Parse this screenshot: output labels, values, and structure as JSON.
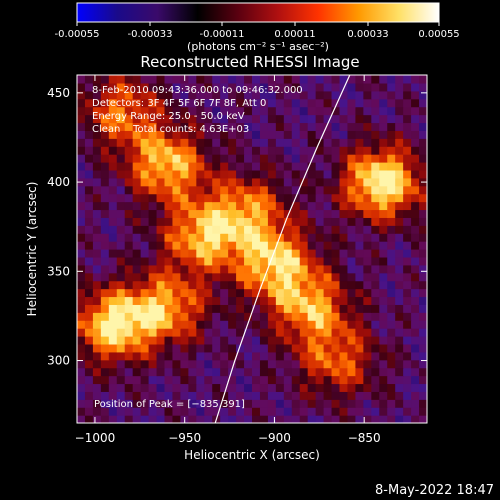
{
  "colorbar": {
    "ticks": [
      "-0.00055",
      "-0.00033",
      "-0.00011",
      "0.00011",
      "0.00033",
      "0.00055"
    ],
    "unit_label": "(photons cm⁻² s⁻¹ asec⁻²)",
    "colors": [
      "#0000ff",
      "#1a0a8a",
      "#3a0a6a",
      "#000000",
      "#5a0010",
      "#b01010",
      "#ff3300",
      "#ff9900",
      "#ffe066",
      "#ffffff"
    ]
  },
  "chart_data": {
    "type": "heatmap",
    "title": "Reconstructed RHESSI Image",
    "xlabel": "Heliocentric X (arcsec)",
    "ylabel": "Heliocentric Y (arcsec)",
    "xlim": [
      -1010,
      -815
    ],
    "ylim": [
      265,
      460
    ],
    "xticks": [
      -1000,
      -950,
      -900,
      -850
    ],
    "yticks": [
      300,
      350,
      400,
      450
    ],
    "xtick_labels": [
      "−1000",
      "−950",
      "−900",
      "−850"
    ],
    "ytick_labels": [
      "300",
      "350",
      "400",
      "450"
    ],
    "info_lines": [
      "8-Feb-2010 09:43:36.000 to 09:46:32.000",
      "Detectors: 3F 4F 5F 6F 7F 8F, Att 0",
      "Energy Range: 25.0 - 50.0 keV",
      "Clean    Total counts: 4.63E+03"
    ],
    "peak_label": "Position of Peak = [−835,391]",
    "peak": [
      -835,
      391
    ],
    "limb_curve": [
      [
        -933,
        265
      ],
      [
        -922,
        300
      ],
      [
        -908,
        340
      ],
      [
        -893,
        380
      ],
      [
        -876,
        420
      ],
      [
        -858,
        460
      ]
    ],
    "bright_regions": [
      {
        "x": -840,
        "y": 400,
        "intensity": 1.0
      },
      {
        "x": -990,
        "y": 320,
        "intensity": 0.9
      },
      {
        "x": -960,
        "y": 410,
        "intensity": 0.8
      },
      {
        "x": -900,
        "y": 355,
        "intensity": 0.8
      },
      {
        "x": -940,
        "y": 370,
        "intensity": 0.75
      },
      {
        "x": -880,
        "y": 330,
        "intensity": 0.7
      },
      {
        "x": -960,
        "y": 330,
        "intensity": 0.7
      },
      {
        "x": -985,
        "y": 440,
        "intensity": 0.6
      },
      {
        "x": -915,
        "y": 385,
        "intensity": 0.6
      },
      {
        "x": -865,
        "y": 300,
        "intensity": 0.55
      }
    ]
  },
  "footer": {
    "date_stamp": "8-May-2022 18:47"
  }
}
